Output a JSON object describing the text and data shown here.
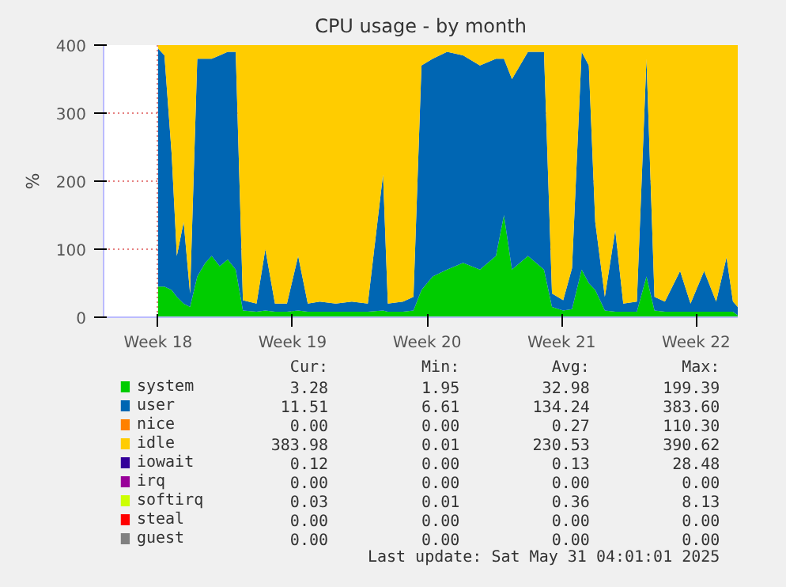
{
  "chart_data": {
    "type": "area",
    "stacked": true,
    "title": "CPU usage - by month",
    "ylabel": "%",
    "x": [
      "2025-05-01T00:00",
      "2025-05-01T08:00",
      "2025-05-01T17:00",
      "2025-05-01T23:30",
      "2025-05-02T08:00",
      "2025-05-02T16:00",
      "2025-05-03T01:00",
      "2025-05-03T11:00",
      "2025-05-03T19:00",
      "2025-05-04T05:00",
      "2025-05-04T15:00",
      "2025-05-05T01:00",
      "2025-05-05T10:00",
      "2025-05-06T03:00",
      "2025-05-06T14:00",
      "2025-05-07T02:00",
      "2025-05-07T17:00",
      "2025-05-08T07:00",
      "2025-05-08T19:00",
      "2025-05-09T10:00",
      "2025-05-10T06:00",
      "2025-05-11T02:00",
      "2025-05-11T22:00",
      "2025-05-12T17:00",
      "2025-05-12T23:00",
      "2025-05-13T18:00",
      "2025-05-14T07:00",
      "2025-05-14T17:00",
      "2025-05-15T07:00",
      "2025-05-16T01:00",
      "2025-05-16T21:00",
      "2025-05-17T18:00",
      "2025-05-18T14:00",
      "2025-05-19T00:00",
      "2025-05-19T10:00",
      "2025-05-20T06:00",
      "2025-05-21T02:00",
      "2025-05-21T12:00",
      "2025-05-22T02:00",
      "2025-05-22T13:00",
      "2025-05-23T01:00",
      "2025-05-23T10:00",
      "2025-05-23T18:00",
      "2025-05-24T06:00",
      "2025-05-24T19:00",
      "2025-05-25T05:00",
      "2025-05-25T22:00",
      "2025-05-26T10:00",
      "2025-05-26T20:00",
      "2025-05-27T09:00",
      "2025-05-28T04:00",
      "2025-05-28T17:00",
      "2025-05-29T10:00",
      "2025-05-30T01:00",
      "2025-05-30T14:00",
      "2025-05-30T22:00",
      "2025-05-31T04:00"
    ],
    "xlim": [
      "2025-04-28T04:00",
      "2025-05-31T04:00"
    ],
    "xticks": [
      {
        "value": "2025-05-01",
        "label": "Week 18"
      },
      {
        "value": "2025-05-08",
        "label": "Week 19"
      },
      {
        "value": "2025-05-15",
        "label": "Week 20"
      },
      {
        "value": "2025-05-22",
        "label": "Week 21"
      },
      {
        "value": "2025-05-29",
        "label": "Week 22"
      }
    ],
    "ylim": [
      0,
      400
    ],
    "yticks": [
      0,
      100,
      200,
      300,
      400
    ],
    "grid": true,
    "legend": "bottom",
    "series": [
      {
        "name": "system",
        "color": "#00cc00",
        "values": [
          45,
          45,
          40,
          30,
          20,
          15,
          60,
          80,
          90,
          75,
          85,
          70,
          10,
          8,
          10,
          8,
          8,
          10,
          8,
          8,
          8,
          8,
          8,
          10,
          8,
          8,
          10,
          40,
          60,
          70,
          80,
          70,
          90,
          150,
          70,
          90,
          70,
          15,
          10,
          12,
          70,
          50,
          40,
          10,
          8,
          8,
          8,
          60,
          10,
          8,
          8,
          8,
          8,
          8,
          8,
          8,
          3
        ]
      },
      {
        "name": "user",
        "color": "#0066b3",
        "values": [
          350,
          340,
          200,
          60,
          120,
          20,
          320,
          300,
          290,
          310,
          305,
          320,
          15,
          12,
          90,
          12,
          12,
          80,
          12,
          15,
          12,
          15,
          12,
          200,
          12,
          15,
          20,
          330,
          320,
          320,
          305,
          300,
          290,
          230,
          280,
          300,
          320,
          20,
          15,
          60,
          320,
          320,
          100,
          20,
          120,
          12,
          15,
          320,
          20,
          15,
          60,
          12,
          60,
          15,
          80,
          15,
          12
        ]
      },
      {
        "name": "nice",
        "color": "#ff8000",
        "values": [
          null,
          null,
          null,
          null,
          null,
          null,
          null,
          null,
          null,
          null,
          null,
          null,
          null,
          null,
          null,
          null,
          null,
          null,
          null,
          null,
          null,
          null,
          null,
          null,
          null,
          null,
          null,
          null,
          null,
          null,
          null,
          null,
          null,
          null,
          null,
          null,
          null,
          null,
          null,
          null,
          null,
          null,
          null,
          null,
          null,
          null,
          null,
          null,
          null,
          null,
          null,
          null,
          null,
          null,
          null,
          null,
          null
        ]
      },
      {
        "name": "idle",
        "color": "#ffcc00",
        "values": [
          5,
          15,
          160,
          310,
          260,
          365,
          20,
          20,
          20,
          15,
          10,
          10,
          375,
          380,
          300,
          380,
          380,
          310,
          380,
          377,
          380,
          377,
          380,
          190,
          380,
          377,
          370,
          30,
          20,
          10,
          15,
          30,
          20,
          20,
          50,
          10,
          10,
          365,
          375,
          328,
          10,
          30,
          260,
          370,
          272,
          380,
          377,
          20,
          370,
          377,
          332,
          380,
          332,
          377,
          312,
          377,
          385
        ]
      },
      {
        "name": "iowait",
        "color": "#330099",
        "values": [
          null,
          null,
          null,
          null,
          null,
          null,
          null,
          null,
          null,
          null,
          null,
          null,
          null,
          null,
          null,
          null,
          null,
          null,
          null,
          null,
          null,
          null,
          null,
          null,
          null,
          null,
          null,
          null,
          null,
          null,
          null,
          null,
          null,
          null,
          null,
          null,
          null,
          null,
          null,
          null,
          null,
          null,
          null,
          null,
          null,
          null,
          null,
          null,
          null,
          null,
          null,
          null,
          null,
          null,
          null,
          null,
          null
        ]
      },
      {
        "name": "irq",
        "color": "#990099",
        "values": [
          null,
          null,
          null,
          null,
          null,
          null,
          null,
          null,
          null,
          null,
          null,
          null,
          null,
          null,
          null,
          null,
          null,
          null,
          null,
          null,
          null,
          null,
          null,
          null,
          null,
          null,
          null,
          null,
          null,
          null,
          null,
          null,
          null,
          null,
          null,
          null,
          null,
          null,
          null,
          null,
          null,
          null,
          null,
          null,
          null,
          null,
          null,
          null,
          null,
          null,
          null,
          null,
          null,
          null,
          null,
          null,
          null
        ]
      },
      {
        "name": "softirq",
        "color": "#ccff00",
        "values": [
          null,
          null,
          null,
          null,
          null,
          null,
          null,
          null,
          null,
          null,
          null,
          null,
          null,
          null,
          null,
          null,
          null,
          null,
          null,
          null,
          null,
          null,
          null,
          null,
          null,
          null,
          null,
          null,
          null,
          null,
          null,
          null,
          null,
          null,
          null,
          null,
          null,
          null,
          null,
          null,
          null,
          null,
          null,
          null,
          null,
          null,
          null,
          null,
          null,
          null,
          null,
          null,
          null,
          null,
          null,
          null,
          null
        ]
      },
      {
        "name": "steal",
        "color": "#ff0000",
        "values": [
          null,
          null,
          null,
          null,
          null,
          null,
          null,
          null,
          null,
          null,
          null,
          null,
          null,
          null,
          null,
          null,
          null,
          null,
          null,
          null,
          null,
          null,
          null,
          null,
          null,
          null,
          null,
          null,
          null,
          null,
          null,
          null,
          null,
          null,
          null,
          null,
          null,
          null,
          null,
          null,
          null,
          null,
          null,
          null,
          null,
          null,
          null,
          null,
          null,
          null,
          null,
          null,
          null,
          null,
          null,
          null,
          null
        ]
      },
      {
        "name": "guest",
        "color": "#808080",
        "values": [
          null,
          null,
          null,
          null,
          null,
          null,
          null,
          null,
          null,
          null,
          null,
          null,
          null,
          null,
          null,
          null,
          null,
          null,
          null,
          null,
          null,
          null,
          null,
          null,
          null,
          null,
          null,
          null,
          null,
          null,
          null,
          null,
          null,
          null,
          null,
          null,
          null,
          null,
          null,
          null,
          null,
          null,
          null,
          null,
          null,
          null,
          null,
          null,
          null,
          null,
          null,
          null,
          null,
          null,
          null,
          null,
          null
        ]
      }
    ],
    "annotations": [
      "Cur:",
      "Min:",
      "Avg:",
      "Max:",
      "3.28",
      "1.95",
      "32.98",
      "199.39",
      "11.51",
      "6.61",
      "134.24",
      "383.60",
      "0.00",
      "0.00",
      "0.27",
      "110.30",
      "383.98",
      "0.01",
      "230.53",
      "390.62",
      "0.12",
      "0.00",
      "0.13",
      "28.48",
      "0.00",
      "0.00",
      "0.00",
      "0.00",
      "0.03",
      "0.01",
      "0.36",
      "8.13",
      "0.00",
      "0.00",
      "0.00",
      "0.00",
      "0.00",
      "0.00",
      "0.00",
      "0.00",
      "Last update: Sat May 31 04:01:01 2025"
    ]
  }
}
